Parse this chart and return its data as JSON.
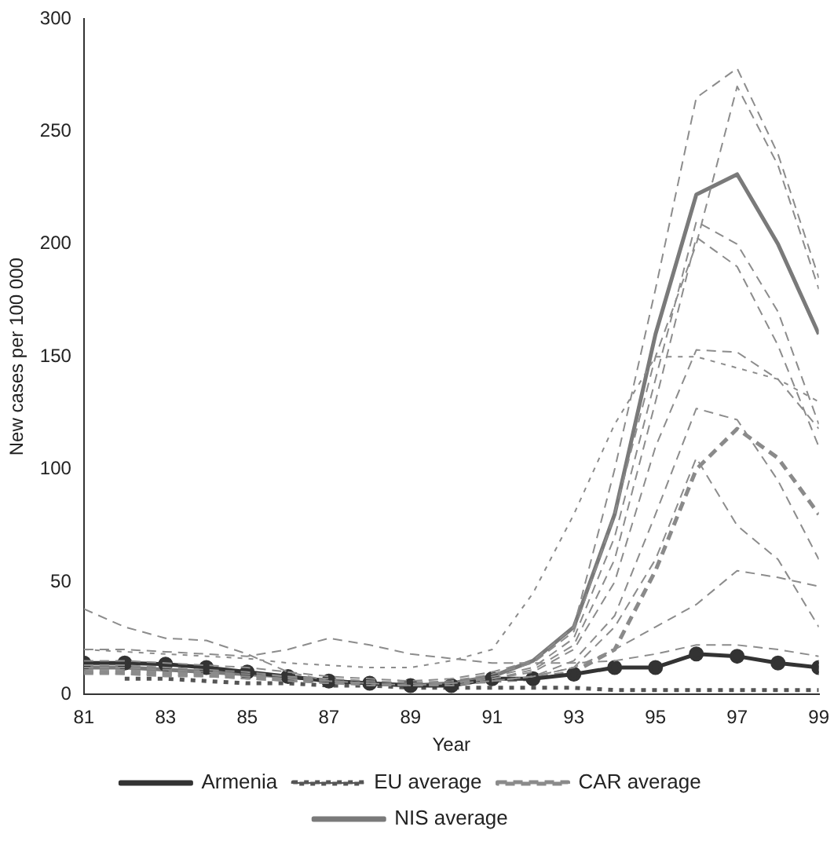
{
  "chart_data": {
    "type": "line",
    "xlabel": "Year",
    "ylabel": "New cases per 100 000",
    "x": [
      81,
      82,
      83,
      84,
      85,
      86,
      87,
      88,
      89,
      90,
      91,
      92,
      93,
      94,
      95,
      96,
      97,
      98,
      99
    ],
    "xlim": [
      81,
      99
    ],
    "xticks": [
      81,
      83,
      85,
      87,
      89,
      91,
      93,
      95,
      97,
      99
    ],
    "ylim": [
      0,
      300
    ],
    "yticks": [
      0,
      50,
      100,
      150,
      200,
      250,
      300
    ],
    "grid": false,
    "legend": "bottom",
    "series": [
      {
        "color": "#8c8c8c",
        "line_style": "dashed",
        "marker": "none",
        "values": [
          15,
          15,
          14,
          13,
          12,
          10,
          8,
          7,
          6,
          7,
          10,
          15,
          30,
          100,
          180,
          265,
          278,
          240,
          185
        ]
      },
      {
        "color": "#8c8c8c",
        "line_style": "dashed",
        "marker": "none",
        "values": [
          13,
          13,
          12,
          11,
          10,
          8,
          7,
          6,
          5,
          6,
          9,
          14,
          28,
          80,
          150,
          200,
          270,
          235,
          180
        ]
      },
      {
        "color": "#8c8c8c",
        "line_style": "dashed",
        "marker": "none",
        "values": [
          12,
          12,
          11,
          10,
          9,
          8,
          6,
          5,
          4,
          5,
          8,
          12,
          25,
          70,
          140,
          210,
          200,
          170,
          120
        ]
      },
      {
        "color": "#8c8c8c",
        "line_style": "dashed",
        "marker": "none",
        "values": [
          11,
          11,
          10,
          9,
          8,
          7,
          6,
          5,
          4,
          5,
          7,
          11,
          22,
          60,
          130,
          203,
          190,
          155,
          110
        ]
      },
      {
        "color": "#8c8c8c",
        "line_style": "dashed",
        "marker": "none",
        "values": [
          10,
          10,
          10,
          9,
          8,
          7,
          6,
          5,
          4,
          5,
          7,
          10,
          20,
          50,
          110,
          153,
          152,
          140,
          118
        ]
      },
      {
        "color": "#8c8c8c",
        "line_style": "dashed",
        "marker": "none",
        "values": [
          10,
          9,
          9,
          8,
          7,
          6,
          5,
          4,
          4,
          4,
          6,
          8,
          15,
          35,
          80,
          127,
          122,
          95,
          60
        ]
      },
      {
        "color": "#8c8c8c",
        "line_style": "dotted",
        "marker": "none",
        "values": [
          20,
          19,
          18,
          17,
          16,
          14,
          13,
          12,
          12,
          15,
          20,
          45,
          80,
          120,
          150,
          150,
          145,
          140,
          130
        ]
      },
      {
        "color": "#8c8c8c",
        "line_style": "dashed",
        "marker": "none",
        "values": [
          38,
          30,
          25,
          24,
          18,
          10,
          6,
          5,
          4,
          5,
          6,
          8,
          12,
          30,
          60,
          105,
          75,
          60,
          30
        ]
      },
      {
        "color": "#8c8c8c",
        "line_style": "dashed",
        "marker": "none",
        "values": [
          20,
          20,
          19,
          18,
          17,
          20,
          25,
          22,
          18,
          16,
          14,
          14,
          14,
          15,
          18,
          22,
          22,
          20,
          17
        ]
      },
      {
        "color": "#8c8c8c",
        "line_style": "dashed",
        "marker": "none",
        "values": [
          9,
          9,
          8,
          8,
          7,
          6,
          5,
          5,
          4,
          4,
          6,
          8,
          12,
          20,
          30,
          40,
          55,
          52,
          48
        ]
      },
      {
        "name": "Armenia",
        "color": "#333333",
        "line_style": "solid",
        "marker": "circle",
        "values": [
          14,
          14,
          13.5,
          12,
          10,
          8,
          6,
          5,
          4,
          4,
          7,
          7,
          9,
          12,
          12,
          18,
          17,
          14,
          12
        ]
      },
      {
        "name": "EU average",
        "color": "#555555",
        "line_style": "dotted",
        "marker": "none",
        "values": [
          null,
          7,
          7,
          6,
          5,
          5,
          4,
          4,
          3,
          3,
          3,
          3,
          3,
          2,
          2,
          2,
          2,
          2,
          2
        ]
      },
      {
        "name": "CAR average",
        "color": "#8a8a8a",
        "line_style": "dashed",
        "marker": "none",
        "values": [
          10,
          10,
          9,
          9,
          8,
          7,
          6,
          5,
          5,
          5,
          6,
          7,
          10,
          20,
          55,
          100,
          118,
          105,
          80
        ]
      },
      {
        "name": "NIS average",
        "color": "#7a7a7a",
        "line_style": "solid",
        "marker": "none",
        "values": [
          12,
          12,
          11,
          10,
          9,
          8,
          6,
          5,
          4,
          5,
          8,
          15,
          30,
          80,
          160,
          222,
          231,
          200,
          160
        ]
      }
    ]
  }
}
